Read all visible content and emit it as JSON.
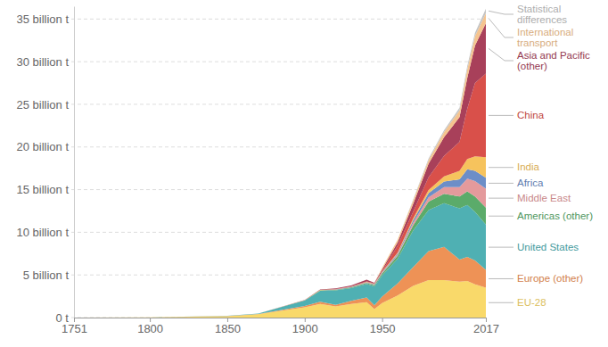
{
  "chart_data": {
    "type": "area",
    "stacked": true,
    "grid": true,
    "x": [
      1751,
      1800,
      1850,
      1870,
      1900,
      1910,
      1920,
      1930,
      1940,
      1945,
      1950,
      1960,
      1970,
      1980,
      1990,
      2000,
      2005,
      2010,
      2017
    ],
    "xlim": [
      1751,
      2017
    ],
    "xticks": [
      1751,
      1800,
      1850,
      1900,
      1950,
      2017
    ],
    "ylim": [
      0,
      36.5
    ],
    "yticks": [
      {
        "value": 0,
        "label": "0 t"
      },
      {
        "value": 5,
        "label": "5 billion t"
      },
      {
        "value": 10,
        "label": "10 billion t"
      },
      {
        "value": 15,
        "label": "15 billion t"
      },
      {
        "value": 20,
        "label": "20 billion t"
      },
      {
        "value": 25,
        "label": "25 billion t"
      },
      {
        "value": 30,
        "label": "30 billion t"
      },
      {
        "value": 35,
        "label": "35 billion t"
      }
    ],
    "series": [
      {
        "name": "EU-28",
        "color": "#f9d96a",
        "values": [
          0.009,
          0.028,
          0.17,
          0.4,
          1.2,
          1.6,
          1.3,
          1.6,
          1.8,
          1.0,
          1.7,
          2.6,
          3.7,
          4.4,
          4.4,
          4.2,
          4.3,
          3.9,
          3.5
        ]
      },
      {
        "name": "Europe (other)",
        "color": "#ee9256",
        "values": [
          0,
          0,
          0.01,
          0.03,
          0.15,
          0.25,
          0.2,
          0.35,
          0.55,
          0.45,
          0.75,
          1.4,
          2.2,
          3.4,
          3.9,
          2.6,
          2.8,
          2.8,
          2.1
        ]
      },
      {
        "name": "United States",
        "color": "#4fb0b3",
        "values": [
          0,
          0.0003,
          0.02,
          0.04,
          0.66,
          1.3,
          1.7,
          1.5,
          1.6,
          2.2,
          2.5,
          2.9,
          4.3,
          4.8,
          5.1,
          6.0,
          6.1,
          5.7,
          5.3
        ]
      },
      {
        "name": "Americas (other)",
        "color": "#5bab6a",
        "values": [
          0,
          0,
          0,
          0.002,
          0.01,
          0.03,
          0.05,
          0.07,
          0.1,
          0.13,
          0.2,
          0.35,
          0.6,
          1.0,
          1.1,
          1.4,
          1.6,
          1.8,
          2.0
        ]
      },
      {
        "name": "Middle East",
        "color": "#e49a9c",
        "values": [
          0,
          0,
          0,
          0,
          0,
          0,
          0.005,
          0.01,
          0.02,
          0.03,
          0.04,
          0.1,
          0.3,
          0.5,
          0.8,
          1.1,
          1.5,
          1.8,
          2.2
        ]
      },
      {
        "name": "Africa",
        "color": "#6c8ec7",
        "values": [
          0,
          0,
          0,
          0.001,
          0.005,
          0.02,
          0.03,
          0.04,
          0.06,
          0.08,
          0.1,
          0.15,
          0.3,
          0.5,
          0.65,
          0.9,
          1.1,
          1.2,
          1.3
        ]
      },
      {
        "name": "India",
        "color": "#f6c35d",
        "values": [
          0,
          0,
          0,
          0.001,
          0.02,
          0.03,
          0.04,
          0.05,
          0.06,
          0.06,
          0.07,
          0.12,
          0.2,
          0.35,
          0.6,
          1.0,
          1.2,
          1.7,
          2.4
        ]
      },
      {
        "name": "China",
        "color": "#d9504a",
        "values": [
          0,
          0,
          0,
          0,
          0,
          0.01,
          0.02,
          0.03,
          0.05,
          0.04,
          0.08,
          0.8,
          0.8,
          1.5,
          2.4,
          3.4,
          5.9,
          8.6,
          9.8
        ]
      },
      {
        "name": "Asia and Pacific (other)",
        "color": "#a8405a",
        "values": [
          0,
          0,
          0,
          0.001,
          0.03,
          0.06,
          0.08,
          0.12,
          0.2,
          0.1,
          0.2,
          0.4,
          0.9,
          1.6,
          2.2,
          2.9,
          3.6,
          4.4,
          5.9
        ]
      },
      {
        "name": "International transport",
        "color": "#f5c48f",
        "values": [
          0,
          0,
          0,
          0,
          0,
          0,
          0,
          0,
          0,
          0,
          0.2,
          0.3,
          0.4,
          0.4,
          0.6,
          0.8,
          1.0,
          1.1,
          1.2
        ]
      },
      {
        "name": "Statistical differences",
        "color": "#c4c4c4",
        "values": [
          0,
          0,
          0,
          0,
          0,
          0,
          0,
          0,
          0,
          0,
          0,
          0,
          0.1,
          0.2,
          0.2,
          0.3,
          0.4,
          0.4,
          0.5
        ]
      }
    ]
  }
}
